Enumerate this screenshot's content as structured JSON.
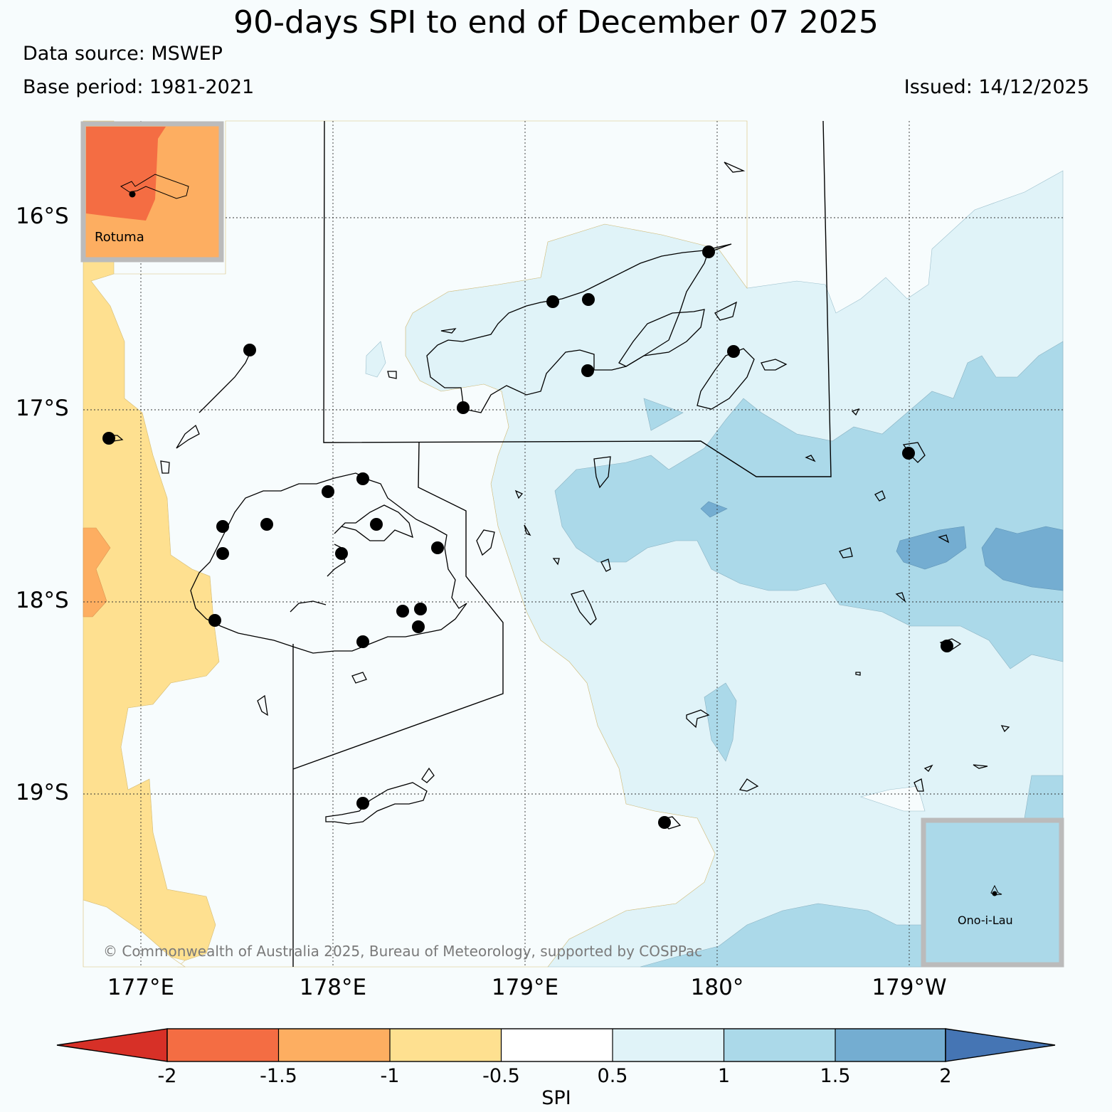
{
  "title": "90-days SPI to end of December 07 2025",
  "data_source": "Data source: MSWEP",
  "base_period": "Base period: 1981-2021",
  "issued": "Issued: 14/12/2025",
  "copyright": "© Commonwealth of Australia 2025, Bureau of Meteorology, supported by COSPPac",
  "lat_labels": [
    "16°S",
    "17°S",
    "18°S",
    "19°S"
  ],
  "lon_labels": [
    "177°E",
    "178°E",
    "179°E",
    "180°",
    "179°W"
  ],
  "insets": {
    "rotuma": "Rotuma",
    "ono_i_lau": "Ono-i-Lau"
  },
  "colorbar": {
    "label": "SPI",
    "ticks": [
      "-2",
      "-1.5",
      "-1",
      "-0.5",
      "0.5",
      "1",
      "1.5",
      "2"
    ],
    "colors": {
      "below_minus2": "#d73027",
      "minus2_to_minus1_5": "#f46d43",
      "minus1_5_to_minus1": "#fdae61",
      "minus1_to_minus0_5": "#fee090",
      "minus0_5_to_0_5": "#ffffff",
      "0_5_to_1": "#e0f3f8",
      "1_to_1_5": "#abd9e9",
      "1_5_to_2": "#74add1",
      "above_2": "#4575b4"
    }
  }
}
